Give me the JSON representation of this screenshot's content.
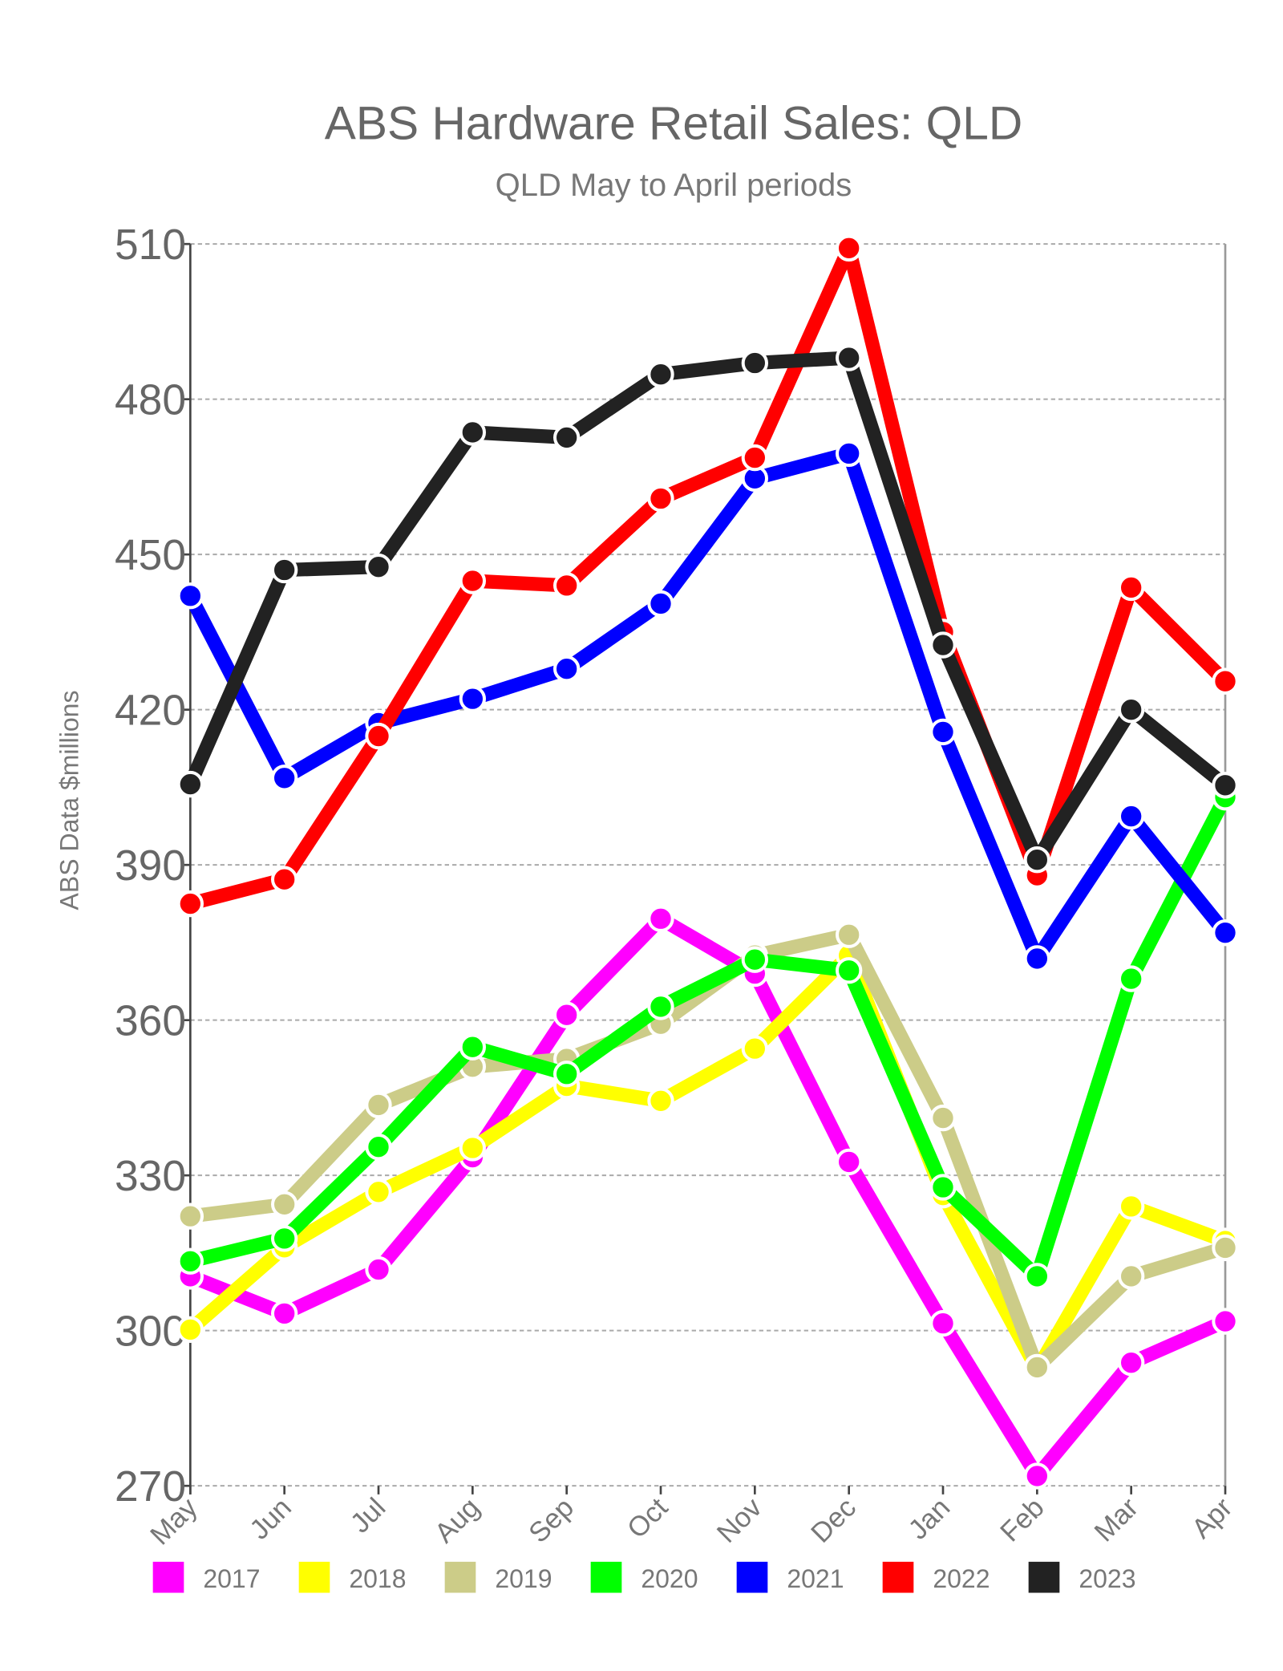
{
  "chart_data": {
    "type": "line",
    "title": "ABS Hardware Retail Sales: QLD",
    "subtitle": "QLD May to April periods",
    "xlabel": "",
    "ylabel": "ABS Data $millions",
    "ylim": [
      270,
      510
    ],
    "yticks": [
      270,
      300,
      330,
      360,
      390,
      420,
      450,
      480,
      510
    ],
    "grid": true,
    "legend_position": "bottom",
    "categories": [
      "May",
      "Jun",
      "Jul",
      "Aug",
      "Sep",
      "Oct",
      "Nov",
      "Dec",
      "Jan",
      "Feb",
      "Mar",
      "Apr"
    ],
    "series": [
      {
        "name": "2017",
        "color": "#ff00ff",
        "values": [
          310.5,
          303.3,
          311.8,
          333.5,
          361,
          379.6,
          369,
          332.6,
          301.4,
          271.9,
          293.8,
          301.8
        ]
      },
      {
        "name": "2018",
        "color": "#ffff00",
        "values": [
          300.2,
          316.1,
          326.8,
          335.3,
          347.3,
          344.4,
          354.5,
          372.5,
          326.2,
          292.5,
          324,
          317.3
        ]
      },
      {
        "name": "2019",
        "color": "#cccc88",
        "values": [
          322.1,
          324.4,
          343.6,
          351,
          352.5,
          359.3,
          372.5,
          376.5,
          341.1,
          292.9,
          310.5,
          316
        ]
      },
      {
        "name": "2020",
        "color": "#00ff00",
        "values": [
          313.4,
          317.8,
          335.5,
          354.8,
          349.6,
          362.6,
          371.7,
          369.6,
          327.7,
          310.5,
          368,
          403.1
        ]
      },
      {
        "name": "2021",
        "color": "#0000ff",
        "values": [
          442,
          406.8,
          417.4,
          422.1,
          427.9,
          440.5,
          464.7,
          469.5,
          415.7,
          371.9,
          399.4,
          376.9
        ]
      },
      {
        "name": "2022",
        "color": "#ff0000",
        "values": [
          382.5,
          387.2,
          414.9,
          444.9,
          444,
          460.8,
          468.7,
          509.2,
          435,
          388,
          443.6,
          425.5
        ]
      },
      {
        "name": "2023",
        "color": "#222222",
        "values": [
          405.6,
          447,
          447.6,
          473.6,
          472.6,
          484.8,
          487,
          488,
          432.5,
          391,
          420,
          405.4
        ]
      }
    ]
  }
}
